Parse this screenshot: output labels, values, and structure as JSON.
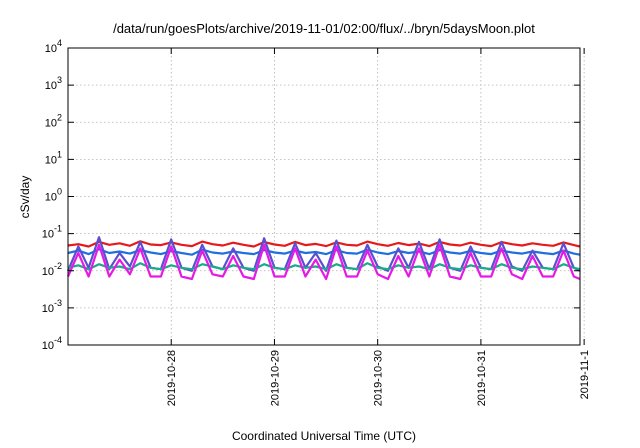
{
  "chart_data": {
    "type": "line",
    "title": "/data/run/goesPlots/archive/2019-11-01/02:00/flux/../bryn/5daysMoon.plot",
    "xlabel": "Coordinated Universal Time (UTC)",
    "ylabel": "cSv/day",
    "y_scale": "log",
    "ylim": [
      0.0001,
      10000
    ],
    "xlim": [
      -1.0,
      3.96
    ],
    "grid": true,
    "x_ticks": [
      {
        "value": 0,
        "label": "2019-10-28"
      },
      {
        "value": 1,
        "label": "2019-10-29"
      },
      {
        "value": 2,
        "label": "2019-10-30"
      },
      {
        "value": 3,
        "label": "2019-10-31"
      },
      {
        "value": 4,
        "label": "2019-11-1"
      }
    ],
    "y_ticks": [
      {
        "value": 0.0001,
        "base": "10",
        "exp": "-4"
      },
      {
        "value": 0.001,
        "base": "10",
        "exp": "-3"
      },
      {
        "value": 0.01,
        "base": "10",
        "exp": "-2"
      },
      {
        "value": 0.1,
        "base": "10",
        "exp": "-1"
      },
      {
        "value": 1,
        "base": "10",
        "exp": "0"
      },
      {
        "value": 10,
        "base": "10",
        "exp": "1"
      },
      {
        "value": 100,
        "base": "10",
        "exp": "2"
      },
      {
        "value": 1000,
        "base": "10",
        "exp": "3"
      },
      {
        "value": 10000,
        "base": "10",
        "exp": "4"
      }
    ],
    "x": [
      -1.0,
      -0.9,
      -0.8,
      -0.7,
      -0.6,
      -0.5,
      -0.4,
      -0.3,
      -0.2,
      -0.1,
      0.0,
      0.1,
      0.2,
      0.3,
      0.4,
      0.5,
      0.6,
      0.7,
      0.8,
      0.9,
      1.0,
      1.1,
      1.2,
      1.3,
      1.4,
      1.5,
      1.6,
      1.7,
      1.8,
      1.9,
      2.0,
      2.1,
      2.2,
      2.3,
      2.4,
      2.5,
      2.6,
      2.7,
      2.8,
      2.9,
      3.0,
      3.1,
      3.2,
      3.3,
      3.4,
      3.5,
      3.6,
      3.7,
      3.8,
      3.9,
      3.96
    ],
    "series": [
      {
        "color": "#e41a1c",
        "values": [
          0.048,
          0.052,
          0.045,
          0.06,
          0.05,
          0.055,
          0.047,
          0.062,
          0.051,
          0.049,
          0.058,
          0.05,
          0.046,
          0.061,
          0.052,
          0.048,
          0.057,
          0.05,
          0.045,
          0.059,
          0.051,
          0.047,
          0.06,
          0.049,
          0.053,
          0.046,
          0.058,
          0.05,
          0.048,
          0.061,
          0.052,
          0.047,
          0.056,
          0.049,
          0.054,
          0.046,
          0.06,
          0.051,
          0.048,
          0.057,
          0.05,
          0.046,
          0.059,
          0.052,
          0.048,
          0.055,
          0.05,
          0.047,
          0.058,
          0.049,
          0.045
        ]
      },
      {
        "color": "#1f6fe0",
        "values": [
          0.03,
          0.035,
          0.028,
          0.038,
          0.03,
          0.033,
          0.029,
          0.036,
          0.031,
          0.028,
          0.034,
          0.03,
          0.027,
          0.037,
          0.031,
          0.029,
          0.033,
          0.03,
          0.028,
          0.036,
          0.031,
          0.029,
          0.035,
          0.03,
          0.032,
          0.028,
          0.036,
          0.03,
          0.029,
          0.037,
          0.031,
          0.028,
          0.034,
          0.03,
          0.033,
          0.028,
          0.036,
          0.031,
          0.029,
          0.034,
          0.03,
          0.028,
          0.035,
          0.031,
          0.029,
          0.033,
          0.03,
          0.028,
          0.035,
          0.029,
          0.027
        ]
      },
      {
        "color": "#5a4fcf",
        "values": [
          0.01,
          0.045,
          0.012,
          0.08,
          0.011,
          0.03,
          0.013,
          0.06,
          0.012,
          0.011,
          0.07,
          0.012,
          0.01,
          0.05,
          0.013,
          0.011,
          0.04,
          0.012,
          0.01,
          0.075,
          0.012,
          0.011,
          0.055,
          0.012,
          0.03,
          0.01,
          0.065,
          0.012,
          0.011,
          0.05,
          0.013,
          0.01,
          0.04,
          0.012,
          0.06,
          0.011,
          0.07,
          0.012,
          0.01,
          0.045,
          0.012,
          0.011,
          0.06,
          0.013,
          0.01,
          0.035,
          0.012,
          0.011,
          0.055,
          0.012,
          0.01
        ]
      },
      {
        "color": "#1aab8a",
        "values": [
          0.012,
          0.014,
          0.011,
          0.015,
          0.012,
          0.013,
          0.011,
          0.016,
          0.012,
          0.011,
          0.014,
          0.012,
          0.011,
          0.015,
          0.013,
          0.011,
          0.014,
          0.012,
          0.011,
          0.015,
          0.012,
          0.011,
          0.014,
          0.012,
          0.013,
          0.011,
          0.015,
          0.012,
          0.011,
          0.016,
          0.012,
          0.011,
          0.014,
          0.012,
          0.013,
          0.011,
          0.015,
          0.012,
          0.011,
          0.014,
          0.012,
          0.011,
          0.015,
          0.012,
          0.011,
          0.013,
          0.012,
          0.011,
          0.015,
          0.012,
          0.011
        ]
      },
      {
        "color": "#e619e6",
        "values": [
          0.007,
          0.03,
          0.007,
          0.05,
          0.007,
          0.02,
          0.008,
          0.04,
          0.007,
          0.007,
          0.045,
          0.007,
          0.006,
          0.035,
          0.008,
          0.007,
          0.025,
          0.007,
          0.006,
          0.05,
          0.007,
          0.007,
          0.04,
          0.007,
          0.02,
          0.006,
          0.045,
          0.007,
          0.007,
          0.035,
          0.008,
          0.006,
          0.025,
          0.007,
          0.04,
          0.007,
          0.05,
          0.007,
          0.006,
          0.03,
          0.007,
          0.007,
          0.04,
          0.008,
          0.006,
          0.025,
          0.007,
          0.007,
          0.035,
          0.007,
          0.006
        ]
      }
    ]
  }
}
